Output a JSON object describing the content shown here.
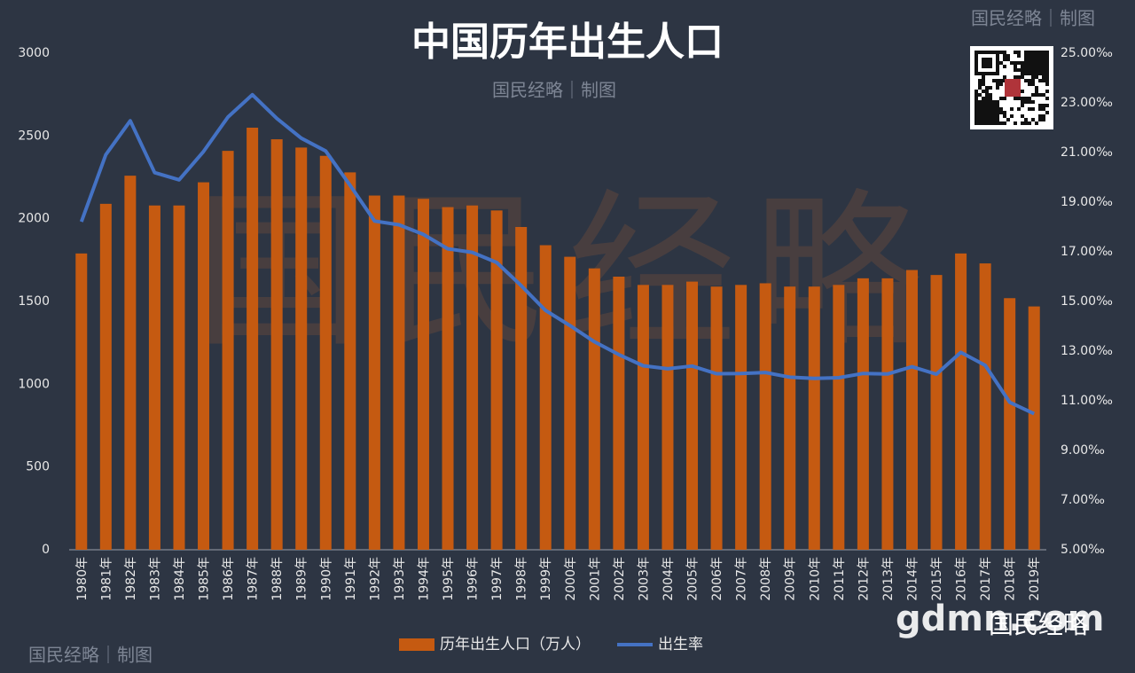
{
  "chart_data": {
    "type": "bar-line",
    "title": "中国历年出生人口",
    "watermarks": [
      "国民经略｜制图",
      "国民经略｜制图",
      "国民经略｜制图"
    ],
    "background_watermark": "国民经略",
    "logo": [
      "gdmn.com",
      "国民经略"
    ],
    "categories": [
      "1980年",
      "1981年",
      "1982年",
      "1983年",
      "1984年",
      "1985年",
      "1986年",
      "1987年",
      "1988年",
      "1989年",
      "1990年",
      "1991年",
      "1992年",
      "1993年",
      "1994年",
      "1995年",
      "1996年",
      "1997年",
      "1998年",
      "1999年",
      "2000年",
      "2001年",
      "2002年",
      "2003年",
      "2004年",
      "2005年",
      "2006年",
      "2007年",
      "2008年",
      "2009年",
      "2010年",
      "2011年",
      "2012年",
      "2013年",
      "2014年",
      "2015年",
      "2016年",
      "2017年",
      "2018年",
      "2019年"
    ],
    "series": [
      {
        "name": "历年出生人口（万人）",
        "type": "bar",
        "color": "#c55a11",
        "values": [
          1790,
          2090,
          2260,
          2080,
          2080,
          2220,
          2410,
          2550,
          2480,
          2430,
          2380,
          2280,
          2140,
          2140,
          2120,
          2070,
          2080,
          2050,
          1950,
          1840,
          1770,
          1700,
          1650,
          1600,
          1600,
          1620,
          1590,
          1600,
          1610,
          1590,
          1590,
          1600,
          1640,
          1640,
          1690,
          1660,
          1790,
          1730,
          1520,
          1470
        ]
      },
      {
        "name": "出生率",
        "type": "line",
        "color": "#4472c4",
        "axis": "y2",
        "values": [
          18.21,
          20.91,
          22.28,
          20.19,
          19.9,
          21.04,
          22.43,
          23.33,
          22.37,
          21.58,
          21.06,
          19.68,
          18.24,
          18.09,
          17.7,
          17.12,
          16.98,
          16.57,
          15.64,
          14.64,
          14.03,
          13.38,
          12.86,
          12.41,
          12.29,
          12.4,
          12.09,
          12.1,
          12.14,
          11.95,
          11.9,
          11.93,
          12.1,
          12.08,
          12.37,
          12.07,
          12.95,
          12.43,
          10.94,
          10.48
        ]
      }
    ],
    "ylim": [
      0,
      3000
    ],
    "yticks": [
      0,
      500,
      1000,
      1500,
      2000,
      2500,
      3000
    ],
    "y2lim": [
      5,
      25
    ],
    "y2ticks": [
      {
        "value": 5,
        "label": "5.00‰"
      },
      {
        "value": 7,
        "label": "7.00‰"
      },
      {
        "value": 9,
        "label": "9.00‰"
      },
      {
        "value": 11,
        "label": "11.00‰"
      },
      {
        "value": 13,
        "label": "13.00‰"
      },
      {
        "value": 15,
        "label": "15.00‰"
      },
      {
        "value": 17,
        "label": "17.00‰"
      },
      {
        "value": 19,
        "label": "19.00‰"
      },
      {
        "value": 21,
        "label": "21.00‰"
      },
      {
        "value": 23,
        "label": "23.00‰"
      },
      {
        "value": 25,
        "label": "25.00‰"
      }
    ],
    "grid": false
  }
}
